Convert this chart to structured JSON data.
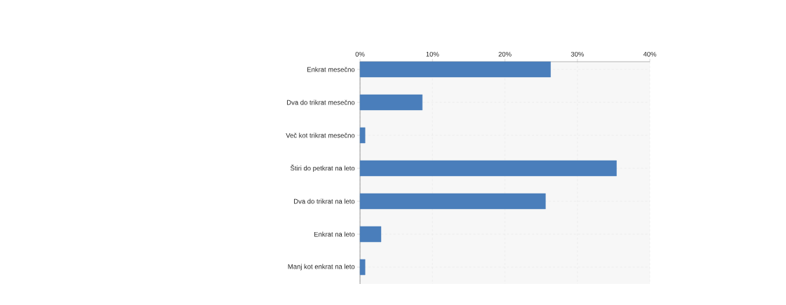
{
  "chart_data": {
    "type": "bar",
    "orientation": "horizontal",
    "categories": [
      "Enkrat mesečno",
      "Dva do trikrat mesečno",
      "Več kot trikrat mesečno",
      "Štiri do petkrat na leto",
      "Dva do trikrat na leto",
      "Enkrat na leto",
      "Manj kot enkrat na leto"
    ],
    "values": [
      26.3,
      8.6,
      0.7,
      35.4,
      25.6,
      2.9,
      0.7
    ],
    "color": "#4a7ebb",
    "xlim": [
      0,
      40
    ],
    "xticks": [
      {
        "value": 0,
        "label": "0%"
      },
      {
        "value": 10,
        "label": "10%"
      },
      {
        "value": 20,
        "label": "20%"
      },
      {
        "value": 30,
        "label": "30%"
      },
      {
        "value": 40,
        "label": "40%"
      }
    ],
    "grid": true
  }
}
